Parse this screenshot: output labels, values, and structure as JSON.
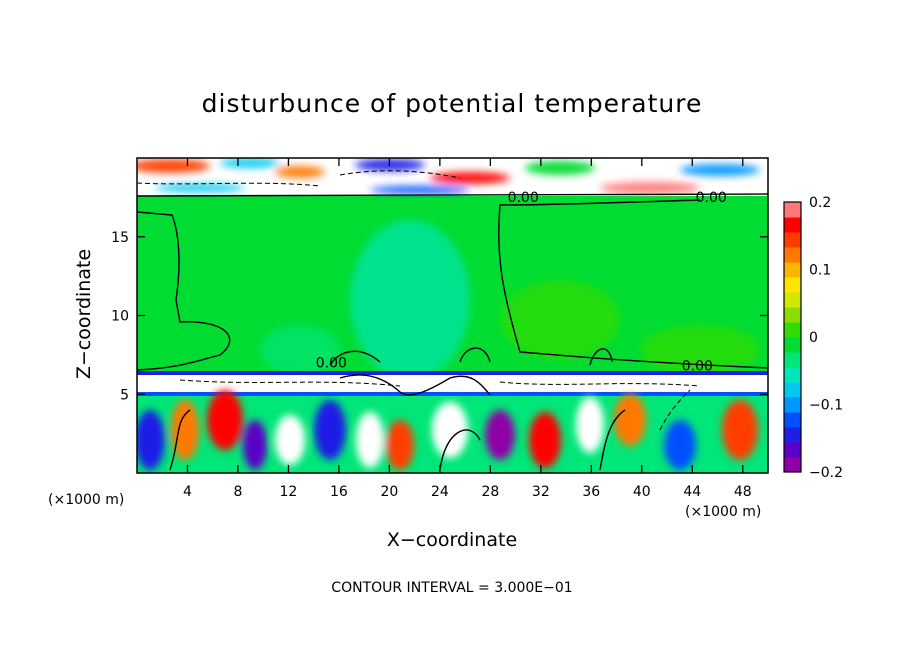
{
  "chart_data": {
    "type": "heatmap",
    "title": "disturbunce of potential temperature",
    "xlabel": "X−coordinate",
    "ylabel": "Z−coordinate",
    "x_unit_left": "(×1000 m)",
    "x_unit_right": "(×1000 m)",
    "xlim": [
      0,
      50
    ],
    "ylim": [
      0,
      20
    ],
    "x_ticks": [
      {
        "value": 4,
        "label": "4"
      },
      {
        "value": 8,
        "label": "8"
      },
      {
        "value": 12,
        "label": "12"
      },
      {
        "value": 16,
        "label": "16"
      },
      {
        "value": 20,
        "label": "20"
      },
      {
        "value": 24,
        "label": "24"
      },
      {
        "value": 28,
        "label": "28"
      },
      {
        "value": 32,
        "label": "32"
      },
      {
        "value": 36,
        "label": "36"
      },
      {
        "value": 40,
        "label": "40"
      },
      {
        "value": 44,
        "label": "44"
      },
      {
        "value": 48,
        "label": "48"
      }
    ],
    "y_ticks": [
      {
        "value": 5,
        "label": "5"
      },
      {
        "value": 10,
        "label": "10"
      },
      {
        "value": 15,
        "label": "15"
      }
    ],
    "colorbar": {
      "range": [
        -0.2,
        0.2
      ],
      "ticks": [
        {
          "value": 0.2,
          "label": "0.2"
        },
        {
          "value": 0.1,
          "label": "0.1"
        },
        {
          "value": 0,
          "label": "0"
        },
        {
          "value": -0.1,
          "label": "−0.1"
        },
        {
          "value": -0.2,
          "label": "−0.2"
        }
      ],
      "colors": [
        "#8e00a8",
        "#5a00c8",
        "#1e1ee6",
        "#0050ff",
        "#0096ff",
        "#00c8f0",
        "#00e6b4",
        "#00e678",
        "#00dc32",
        "#32dc00",
        "#8cdc00",
        "#d2e600",
        "#ffe600",
        "#ffb400",
        "#ff7800",
        "#ff3c00",
        "#ff0000",
        "#ff7878"
      ]
    },
    "contour_labels": [
      {
        "x": 30.6,
        "y": 17.2,
        "label": "0.00"
      },
      {
        "x": 45.5,
        "y": 17.2,
        "label": "0.00"
      },
      {
        "x": 15.4,
        "y": 6.7,
        "label": "0.00"
      },
      {
        "x": 44.4,
        "y": 6.5,
        "label": "0.00"
      }
    ],
    "footer": "CONTOUR INTERVAL = 3.000E−01"
  }
}
